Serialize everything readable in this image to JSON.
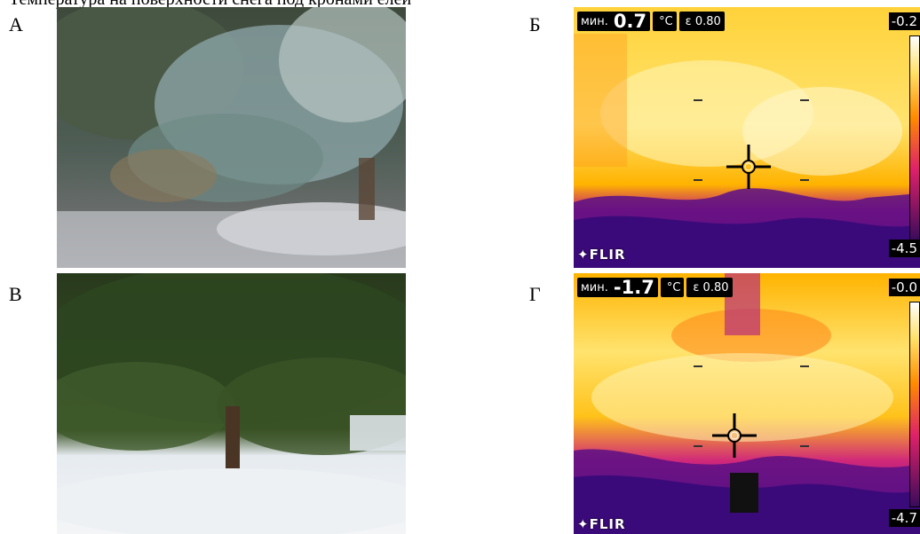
{
  "caption": "Температура на поверхности снега под кронами елей",
  "panels": [
    {
      "letter": "А"
    },
    {
      "letter": "Б",
      "hud_label": "мин.",
      "min_value": "0.7",
      "unit": "°C",
      "emissivity": "ε 0.80",
      "corner_value": "-0.2",
      "bottom_value": "-4.5",
      "brand": "FLIR"
    },
    {
      "letter": "В"
    },
    {
      "letter": "Г",
      "hud_label": "мин.",
      "min_value": "-1.7",
      "unit": "°C",
      "emissivity": "ε 0.80",
      "corner_value": "-0.0",
      "bottom_value": "-4.7",
      "brand": "FLIR"
    }
  ],
  "colors": {
    "thermal_hot": "#fff3b0",
    "thermal_warm": "#ffb300",
    "thermal_mid": "#e8206a",
    "thermal_cold": "#3b0a7a",
    "spruce_blue": "#7d9a9a",
    "spruce_green": "#2f4a1d",
    "snow": "#e9eef3"
  },
  "icons": [
    "crosshair-icon",
    "flir-logo-icon"
  ]
}
